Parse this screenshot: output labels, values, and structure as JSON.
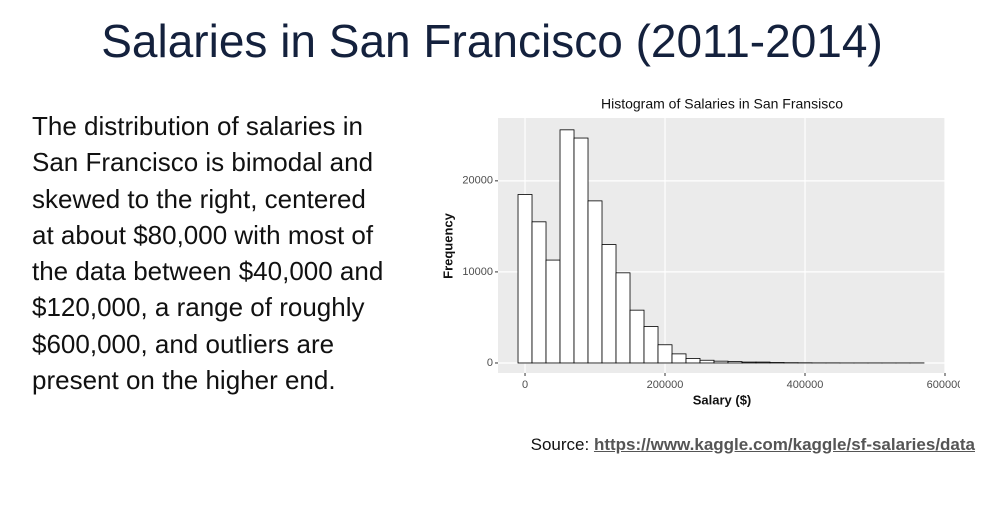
{
  "slide_title": "Salaries in San Francisco (2011-2014)",
  "body_lines": [
    "The distribution of salaries in",
    "San Francisco is bimodal and",
    "skewed to the right, centered",
    "at about $80,000 with most of",
    "the data between $40,000 and",
    "$120,000, a range of roughly",
    "$600,000, and outliers are",
    "present on the higher end."
  ],
  "source": {
    "label": "Source:",
    "link": "https://www.kaggle.com/kaggle/sf-salaries/data"
  },
  "chart_data": {
    "type": "histogram",
    "title": "Histogram of Salaries in San Fransisco",
    "x_label": "Salary ($)",
    "y_label": "Frequency",
    "bins": [
      -10000,
      10000,
      30000,
      50000,
      70000,
      90000,
      110000,
      130000,
      150000,
      170000,
      190000,
      210000,
      230000,
      250000,
      270000,
      290000,
      310000,
      330000,
      350000,
      370000,
      390000,
      410000,
      430000,
      450000,
      470000,
      490000,
      510000,
      530000,
      550000,
      570000
    ],
    "values": [
      18500,
      15500,
      11300,
      25600,
      24700,
      17800,
      13000,
      9900,
      5800,
      4000,
      2000,
      1000,
      500,
      300,
      200,
      150,
      100,
      100,
      50,
      30,
      20,
      10,
      10,
      5,
      5,
      5,
      5,
      5,
      5
    ],
    "color": "#ffffff",
    "edge_color": "#000000",
    "xlim": [
      -38600,
      600000
    ],
    "xticks": [
      0,
      200000,
      400000,
      600000
    ],
    "ylim": [
      -1100,
      26900
    ],
    "yticks": [
      0,
      10000,
      20000
    ],
    "grid": true
  }
}
